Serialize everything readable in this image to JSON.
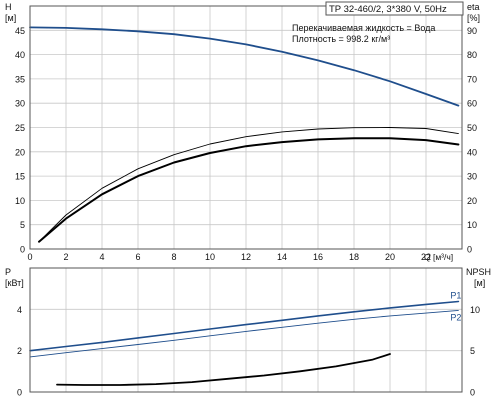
{
  "header": {
    "model": "TP 32-460/2, 3*380 V, 50Hz",
    "liquid": "Перекачиваемая жидкость = Вода",
    "density": "Плотность = 998.2 кг/м³"
  },
  "colors": {
    "axis": "#333333",
    "grid": "#c8c8c8",
    "frame": "#555555",
    "head_curve": "#1f4e8c",
    "eta_curve": "#000000",
    "power_curve": "#1f4e8c",
    "npsh_curve": "#000000",
    "label_blue": "#1f4e8c"
  },
  "chart_data": [
    {
      "type": "line",
      "title": "",
      "xlabel": "Q [м³/ч]",
      "ylabel": "H [м]",
      "y2label": "eta [%]",
      "xlim": [
        0,
        24
      ],
      "ylim": [
        0,
        50
      ],
      "y2lim": [
        0,
        100
      ],
      "x_ticks": [
        0,
        2,
        4,
        6,
        8,
        10,
        12,
        14,
        16,
        18,
        20,
        22
      ],
      "y_ticks": [
        0,
        5,
        10,
        15,
        20,
        25,
        30,
        35,
        40,
        45
      ],
      "y2_ticks": [
        0,
        10,
        20,
        30,
        40,
        50,
        60,
        70,
        80,
        90
      ],
      "grid": true,
      "series": [
        {
          "axis": "left",
          "x": [
            0,
            2,
            4,
            6,
            8,
            10,
            12,
            14,
            16,
            18,
            20,
            22,
            23.8
          ],
          "y": [
            45.6,
            45.5,
            45.2,
            44.8,
            44.2,
            43.3,
            42.1,
            40.6,
            38.8,
            36.8,
            34.5,
            31.9,
            29.5
          ]
        },
        {
          "axis": "right",
          "x": [
            0.5,
            2,
            4,
            6,
            8,
            10,
            12,
            14,
            16,
            18,
            20,
            22,
            23.8
          ],
          "y": [
            3,
            12.5,
            22.5,
            30,
            35.6,
            39.5,
            42.3,
            44,
            45.1,
            45.6,
            45.6,
            44.8,
            43
          ]
        },
        {
          "axis": "right",
          "x": [
            0.5,
            2,
            4,
            6,
            8,
            10,
            12,
            14,
            16,
            18,
            20,
            22,
            23.8
          ],
          "y": [
            3,
            14,
            25,
            33,
            38.8,
            43.2,
            46.2,
            48.2,
            49.4,
            49.9,
            50,
            49.6,
            47.5
          ]
        }
      ]
    },
    {
      "type": "line",
      "title": "",
      "xlabel": "",
      "ylabel": "P [кВт]",
      "y2label": "NPSH [м]",
      "xlim": [
        0,
        24
      ],
      "ylim": [
        0,
        6
      ],
      "y2lim": [
        0,
        15
      ],
      "y_ticks": [
        0,
        2,
        4
      ],
      "y2_ticks": [
        0,
        5,
        10
      ],
      "grid": true,
      "series": [
        {
          "name": "P1",
          "axis": "left",
          "x": [
            0,
            2,
            4,
            6,
            8,
            10,
            12,
            14,
            16,
            18,
            20,
            22,
            23.8
          ],
          "y": [
            2.0,
            2.2,
            2.4,
            2.62,
            2.83,
            3.05,
            3.26,
            3.47,
            3.68,
            3.88,
            4.07,
            4.24,
            4.38
          ]
        },
        {
          "name": "P2",
          "axis": "left",
          "x": [
            0,
            2,
            4,
            6,
            8,
            10,
            12,
            14,
            16,
            18,
            20,
            22,
            23.8
          ],
          "y": [
            1.7,
            1.9,
            2.1,
            2.3,
            2.5,
            2.72,
            2.93,
            3.13,
            3.33,
            3.52,
            3.68,
            3.82,
            3.95
          ]
        },
        {
          "axis": "right",
          "x": [
            1.5,
            3,
            5,
            7,
            9,
            11,
            13,
            15,
            17,
            19,
            20
          ],
          "y": [
            0.9,
            0.85,
            0.85,
            0.95,
            1.2,
            1.6,
            2.0,
            2.5,
            3.1,
            3.9,
            4.6
          ]
        }
      ]
    }
  ]
}
